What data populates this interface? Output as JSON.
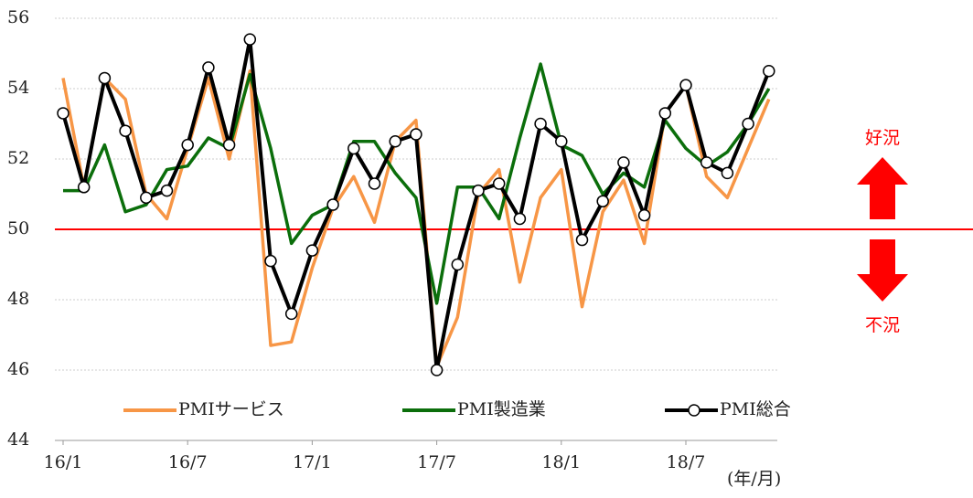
{
  "chart_data": {
    "type": "line",
    "categories": [
      "16/1",
      null,
      null,
      null,
      null,
      null,
      "16/7",
      null,
      null,
      null,
      null,
      null,
      "17/1",
      null,
      null,
      null,
      null,
      null,
      "17/7",
      null,
      null,
      null,
      null,
      null,
      "18/1",
      null,
      null,
      null,
      null,
      null,
      "18/7",
      null,
      null,
      null,
      null
    ],
    "series": [
      {
        "name": "PMIサービス",
        "color": "#f79646",
        "values": [
          54.3,
          51.2,
          54.3,
          53.7,
          51.0,
          50.3,
          52.3,
          54.3,
          52.0,
          54.5,
          46.7,
          46.8,
          48.9,
          50.6,
          51.5,
          50.2,
          52.5,
          53.1,
          46.1,
          47.5,
          51.0,
          51.7,
          48.5,
          50.9,
          51.7,
          47.8,
          50.5,
          51.4,
          49.6,
          53.3,
          54.1,
          51.5,
          50.9,
          52.3,
          53.7
        ]
      },
      {
        "name": "PMI製造業",
        "color": "#0b6e0b",
        "values": [
          51.1,
          51.1,
          52.4,
          50.5,
          50.7,
          51.7,
          51.8,
          52.6,
          52.3,
          54.4,
          52.3,
          49.6,
          50.4,
          50.7,
          52.5,
          52.5,
          51.6,
          50.9,
          47.9,
          51.2,
          51.2,
          50.3,
          52.6,
          54.7,
          52.4,
          52.1,
          51.0,
          51.6,
          51.2,
          53.1,
          52.3,
          51.8,
          52.2,
          53.0,
          54.0
        ]
      },
      {
        "name": "PMI総合",
        "color": "#000000",
        "markers": true,
        "values": [
          53.3,
          51.2,
          54.3,
          52.8,
          50.9,
          51.1,
          52.4,
          54.6,
          52.4,
          55.4,
          49.1,
          47.6,
          49.4,
          50.7,
          52.3,
          51.3,
          52.5,
          52.7,
          46.0,
          49.0,
          51.1,
          51.3,
          50.3,
          53.0,
          52.5,
          49.7,
          50.8,
          51.9,
          50.4,
          53.3,
          54.1,
          51.9,
          51.6,
          53.0,
          54.5
        ]
      }
    ],
    "ylim": [
      44,
      56
    ],
    "yticks": [
      44,
      46,
      48,
      50,
      52,
      54,
      56
    ],
    "grid": true,
    "reference_line": {
      "value": 50,
      "color": "#ff0000"
    },
    "annotations": [
      "好況",
      "不況"
    ],
    "x_label": "(年/月)"
  }
}
